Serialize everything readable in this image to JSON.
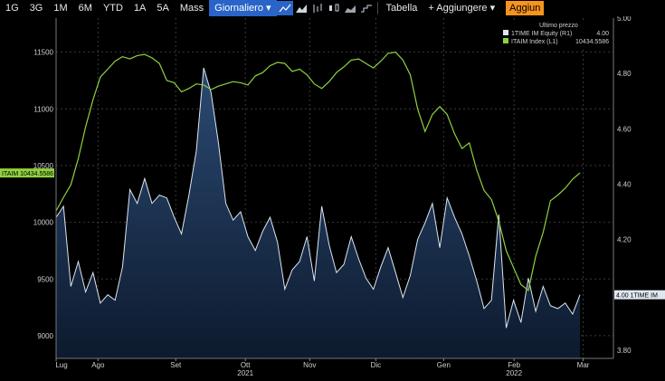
{
  "toolbar": {
    "periods": [
      "1G",
      "3G",
      "1M",
      "6M",
      "YTD",
      "1A",
      "5A",
      "Mass"
    ],
    "frequency": "Giornaliero",
    "table_label": "Tabella",
    "add_label": "+ Aggiungere",
    "update_label": "Aggiun",
    "colors": {
      "active": "#2a64c8",
      "orange": "#f7941d"
    }
  },
  "chart_data": {
    "type": "line",
    "legend_title": "Ultimo prezzo",
    "legend_position": "top-right",
    "left_axis": {
      "ticks": [
        9000,
        9500,
        10000,
        10500,
        11000,
        11500
      ],
      "ylim": [
        8800,
        11800
      ]
    },
    "right_axis": {
      "ticks": [
        "3.80",
        "4.00",
        "4.20",
        "4.40",
        "4.60",
        "4.80",
        "5.00"
      ],
      "ylim": [
        3.77,
        5.0
      ]
    },
    "x_ticks": [
      "Lug",
      "Ago",
      "Set",
      "Ott",
      "Nov",
      "Dic",
      "Gen",
      "Feb",
      "Mar"
    ],
    "x_tick_positions": [
      0,
      0.097,
      0.277,
      0.438,
      0.587,
      0.74,
      0.897,
      1.06,
      1.22
    ],
    "x_range": [
      0,
      1.29
    ],
    "year_labels": [
      {
        "label": "2021",
        "at": 0.438
      },
      {
        "label": "2022",
        "at": 1.06
      }
    ],
    "series": [
      {
        "name": "ITAIM Index (L1)",
        "legend_text": "ITAIM Index  (L1)",
        "last": "10434.5586",
        "tag_text": "ITAIM 10434.5586",
        "axis": "left",
        "color": "#8fd13f",
        "values": [
          10100,
          10220,
          10330,
          10560,
          10840,
          11080,
          11280,
          11350,
          11420,
          11460,
          11440,
          11470,
          11480,
          11450,
          11400,
          11250,
          11230,
          11150,
          11180,
          11220,
          11210,
          11170,
          11200,
          11220,
          11240,
          11230,
          11210,
          11290,
          11320,
          11380,
          11410,
          11400,
          11330,
          11350,
          11300,
          11220,
          11180,
          11240,
          11320,
          11370,
          11430,
          11440,
          11400,
          11360,
          11420,
          11490,
          11500,
          11430,
          11300,
          11000,
          10800,
          10950,
          11020,
          10950,
          10780,
          10650,
          10700,
          10460,
          10280,
          10200,
          10010,
          9750,
          9600,
          9450,
          9400,
          9700,
          9910,
          10190,
          10240,
          10300,
          10380,
          10434.5586
        ]
      },
      {
        "name": "1TIME IM Equity (R1)",
        "legend_text": "1TIME IM Equity  (R1)",
        "last": "4.00",
        "tag_text": "4.00 1TIME IM",
        "axis": "right",
        "color": "#dde6f2",
        "values": [
          4.28,
          4.32,
          4.03,
          4.12,
          4.01,
          4.08,
          3.97,
          4.0,
          3.98,
          4.1,
          4.38,
          4.33,
          4.42,
          4.33,
          4.36,
          4.35,
          4.28,
          4.22,
          4.36,
          4.52,
          4.82,
          4.73,
          4.55,
          4.33,
          4.27,
          4.3,
          4.21,
          4.16,
          4.23,
          4.28,
          4.19,
          4.02,
          4.09,
          4.12,
          4.21,
          4.05,
          4.32,
          4.18,
          4.08,
          4.11,
          4.21,
          4.13,
          4.06,
          4.02,
          4.1,
          4.17,
          4.08,
          3.99,
          4.07,
          4.2,
          4.26,
          4.33,
          4.17,
          4.35,
          4.28,
          4.22,
          4.14,
          4.05,
          3.95,
          3.98,
          4.29,
          3.88,
          3.98,
          3.9,
          4.06,
          3.94,
          4.03,
          3.96,
          3.95,
          3.97,
          3.93,
          4.0
        ]
      }
    ],
    "grid": true
  }
}
